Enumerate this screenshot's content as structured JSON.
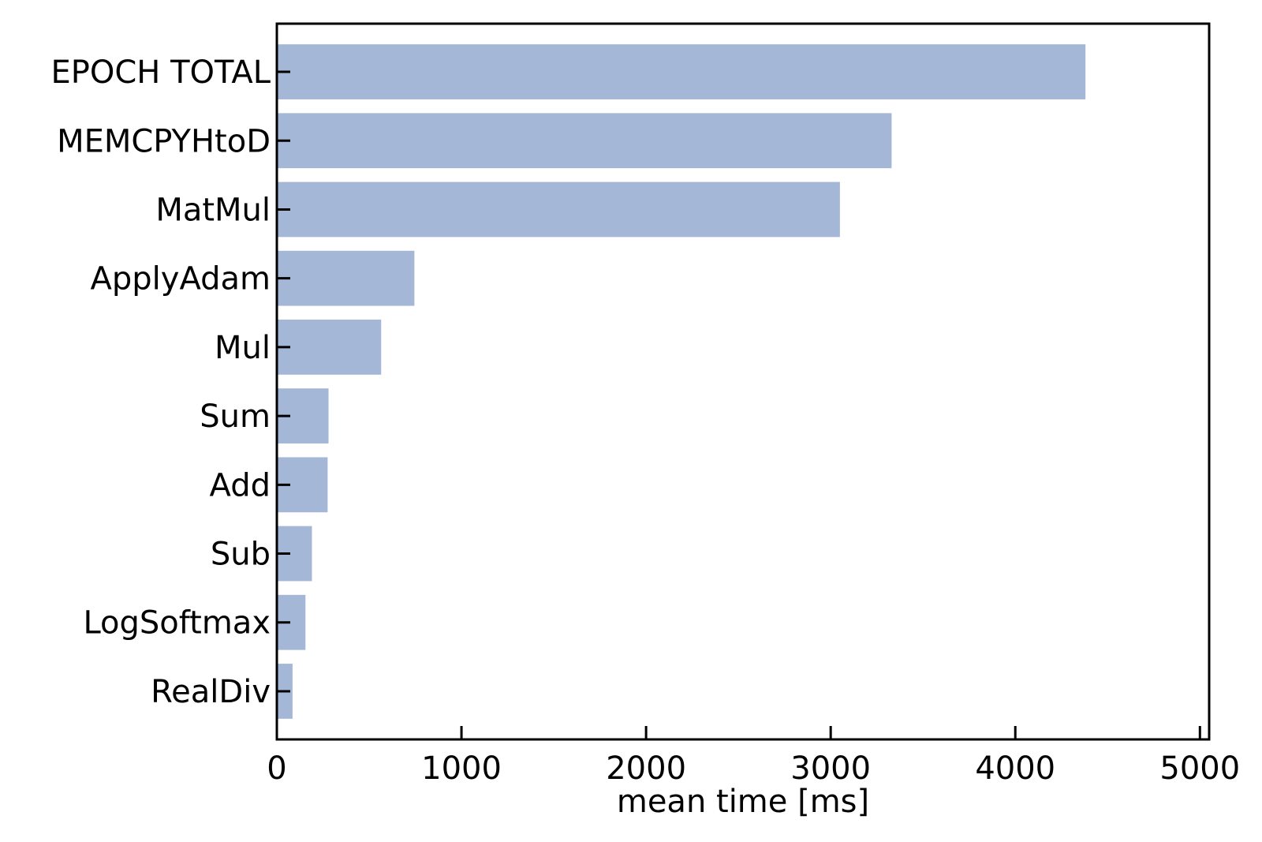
{
  "chart_data": {
    "type": "bar",
    "orientation": "horizontal",
    "categories": [
      "EPOCH TOTAL",
      "MEMCPYHtoD",
      "MatMul",
      "ApplyAdam",
      "Mul",
      "Sum",
      "Add",
      "Sub",
      "LogSoftmax",
      "RealDiv"
    ],
    "values": [
      4380,
      3330,
      3050,
      745,
      565,
      280,
      275,
      190,
      155,
      85
    ],
    "title": "",
    "xlabel": "mean time [ms]",
    "ylabel": "",
    "xlim": [
      0,
      5050
    ],
    "xticks": [
      0,
      1000,
      2000,
      3000,
      4000,
      5000
    ],
    "xtick_labels": [
      "0",
      "1000",
      "2000",
      "3000",
      "4000",
      "5000"
    ],
    "grid": false,
    "bar_color": "#a5b7d7",
    "axis_color": "#000000"
  }
}
